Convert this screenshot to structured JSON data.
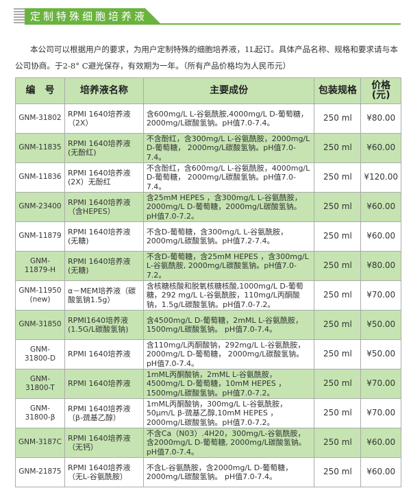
{
  "title": "定制特殊细胞培养液",
  "intro": "本公司可以根据用户的要求，为用户定制特殊的细胞培养液，1L起订。具体产品名称、规格和要求请与本公司协商。于2-8° C避光保存，有效期为一年。（所有产品价格均为人民币元）",
  "colors": {
    "accent": "#6ab33e",
    "row_fill": "#c6e4b2"
  },
  "table": {
    "headers": [
      "编　号",
      "培养液名称",
      "主要成份",
      "包装规格",
      "价格(元)"
    ],
    "rows": [
      {
        "id": "GNM-31802",
        "name": "RPMI 1640培养液（2X）",
        "ingredients": "含600mg/L L-谷氨酰胺,4000mg/L D-葡萄糖，2000mg/L碳酸氢钠。pH值7.0-7.4。",
        "size": "250 ml",
        "price": "¥80.00"
      },
      {
        "id": "GNM-11835",
        "name": "RPMI 1640培养液(无酚红)",
        "ingredients": "不含酚红，含300mg/L L-谷氨酰胺，2000mg/L D-葡萄糖， 2000mg/L碳酸氢钠。pH值7.0-7.4。",
        "size": "250 ml",
        "price": "¥60.00"
      },
      {
        "id": "GNM-11836",
        "name": "RPMI 1640培养液(2X）无酚红",
        "ingredients": "不含酚红，含600mg/L L-谷氨酰胺，4000mg/L D-葡萄糖， 2000mg/L碳酸氢钠。pH值7.0-7.4。",
        "size": "250 ml",
        "price": "¥120.00"
      },
      {
        "id": "GNM-23400",
        "name": "RPMI 1640培养液（含HEPES）",
        "ingredients": "含25mM HEPES ，含300mg/L L-谷氨酰胺，2000mg/L D-葡萄糖，2000mg/L碳酸氢钠。pH值7.0-7.2。",
        "size": "250 ml",
        "price": "¥60.00"
      },
      {
        "id": "GNM-11879",
        "name": "RPMI 1640培养液(无糖)",
        "ingredients": "不含D-葡萄糖，含300mg/L L-谷氨酰胺，2000mg/L碳酸氢钠。pH值7.2-7.4。",
        "size": "250 ml",
        "price": "¥60.00"
      },
      {
        "id": "GNM-11879-H",
        "name": "RPMI 1640培养液(无糖)",
        "ingredients": "不含D-葡萄糖，含25mM HEPES ，含300mg/L L-谷氨酰胺, 2000mg/L碳酸氢钠。pH值7.0-7.2。",
        "size": "250 ml",
        "price": "¥80.00"
      },
      {
        "id": "GNM-11950 (new)",
        "name": "α－MEM培养液（碳酸氢钠1.5g）",
        "ingredients": "含核糖核酸和脱氧核糖核酸,1000mg/L D-葡萄糖，292 mg/L L-谷氨酰胺，110mg/L丙酮酸钠，1.5g/L碳酸氢钠。pH值7.0-7.2。",
        "size": "250 ml",
        "price": "¥70.00"
      },
      {
        "id": "GNM-31850",
        "name": "RPMI1640培养液(1.5G/L碳酸氢钠)",
        "ingredients": "含4500mg/L D-葡萄糖，2mML L-谷氨酰胺，1500mg/L碳酸氢钠。 pH值7.0-7.4。",
        "size": "250 ml",
        "price": "¥50.00"
      },
      {
        "id": "GNM-31800-D",
        "name": "RPMI 1640培养液",
        "ingredients": "含110mg/L丙酮酸钠，292mg/L L-谷氨酰胺，2000mg/L D-葡萄糖， 2000mg/L碳酸氢钠。pH值7.0-7.4。",
        "size": "250 ml",
        "price": "¥50.00"
      },
      {
        "id": "GNM-31800-T",
        "name": "RPMI 1640培养液",
        "ingredients": "1mML丙酮酸钠，2mML L-谷氨酰胺，4500mg/L D-葡萄糖，10mM HEPES ，1500mg/L碳酸氢钠。pH值7.0-7.2。",
        "size": "250 ml",
        "price": "¥70.00"
      },
      {
        "id": "GNM-31800-β",
        "name": "RPMI 1640培养液（β-巯基乙醇）",
        "ingredients": "1mML丙酮酸钠，300mg/L L-谷氨酰胺，50μm/L β-巯基乙醇,10mM HEPES ，2000mg/L碳酸氢钠。pH值7.0-7.2。",
        "size": "250 ml",
        "price": "¥70.00"
      },
      {
        "id": "GNM-3187C",
        "name": "RPMI 1640培养液（无钙）",
        "ingredients": "不含Ca（N03）.4H20，300mg/L-谷氨酰胺，含2000mg/L D-葡萄糖, 2000mg/L碳酸氢钠。pH值7.0-7.4。",
        "size": "250 ml",
        "price": "¥60.00"
      },
      {
        "id": "GNM-21875",
        "name": "RPMI 1640培养液（无L-谷氨酰胺）",
        "ingredients": "不含L-谷氨酰胺，含2000mg/L D-葡萄糖，2000mg/L碳酸氢钠。 pH值7.0-7.4。",
        "size": "250 ml",
        "price": "¥60.00"
      }
    ]
  }
}
